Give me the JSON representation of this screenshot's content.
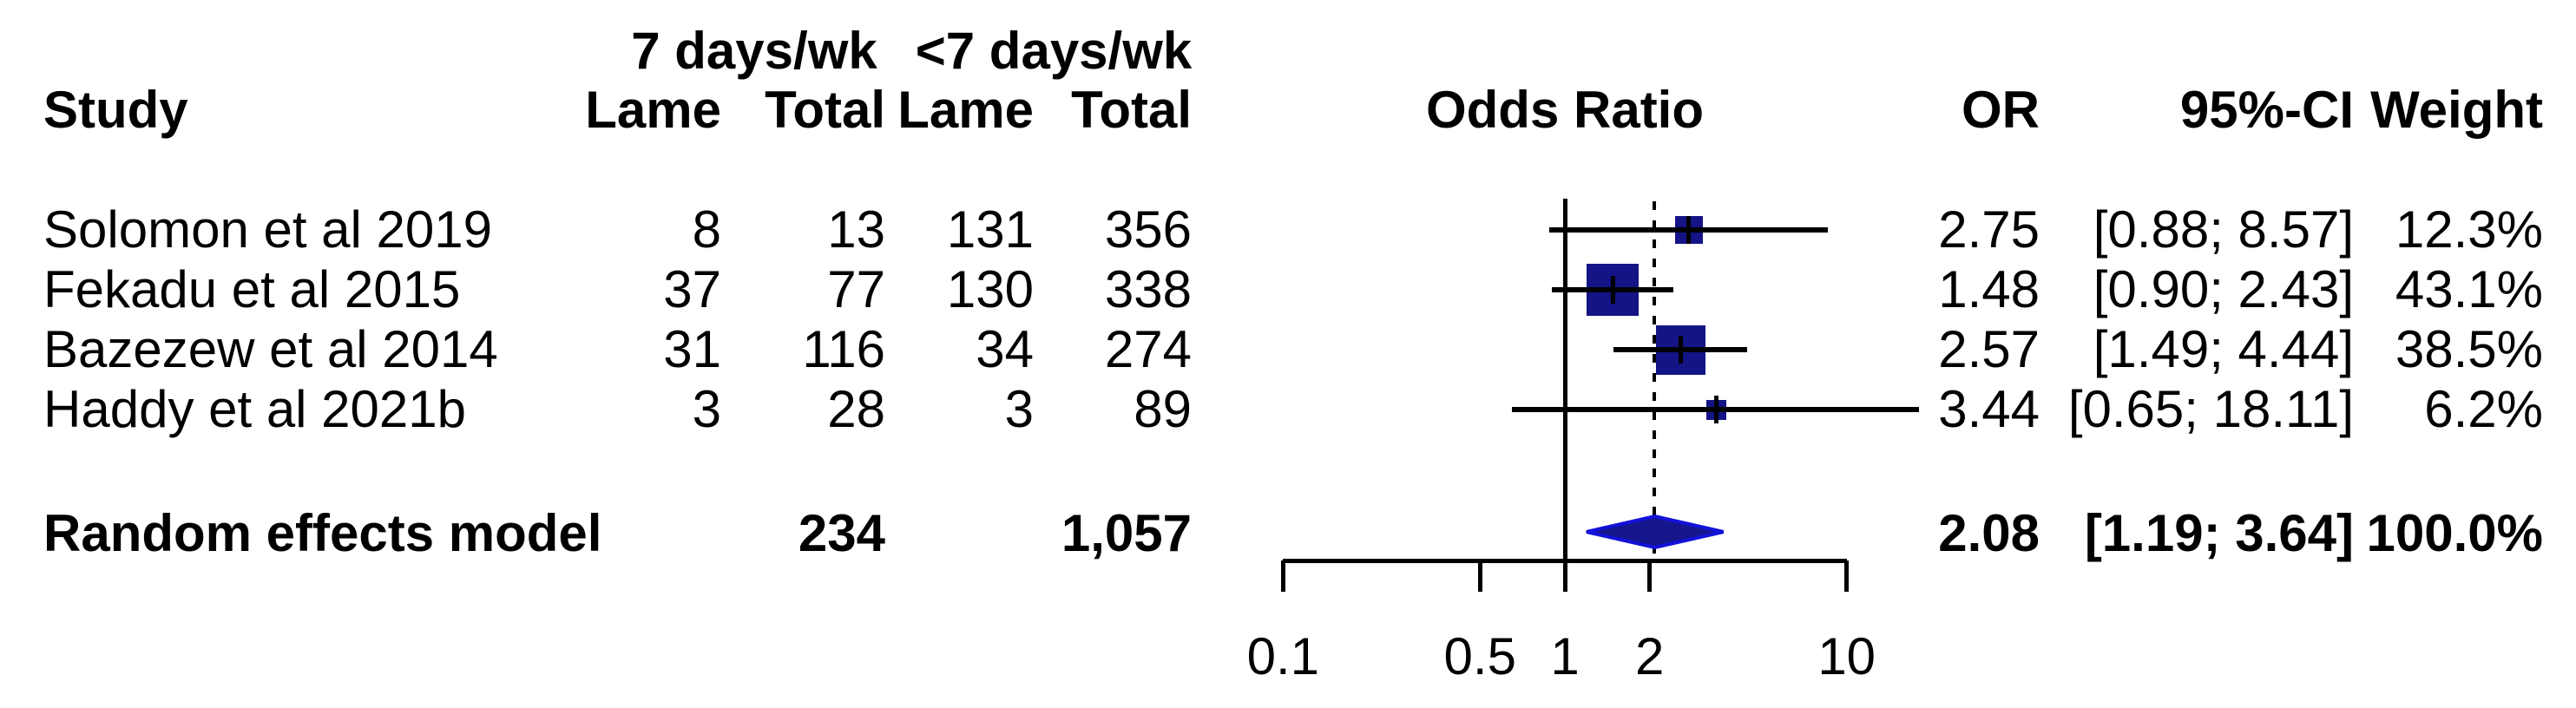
{
  "headers": {
    "study": "Study",
    "group1": "7 days/wk",
    "group2": "<7 days/wk",
    "lame": "Lame",
    "total": "Total",
    "odds_ratio": "Odds Ratio",
    "or": "OR",
    "ci": "95%-CI",
    "weight": "Weight"
  },
  "colors": {
    "square_fill": "#141487",
    "diamond_fill": "#16168c",
    "diamond_stroke": "#1212d9",
    "line": "#000000",
    "text": "#000000"
  },
  "chart_data": {
    "type": "forest",
    "x_scale": "log10",
    "axis_ticks": [
      "0.1",
      "0.5",
      "1",
      "2",
      "10"
    ],
    "ref_line": 1,
    "dotted_line_at": 2.08,
    "studies": [
      {
        "name": "Solomon et al 2019",
        "lame_7d": 8,
        "total_7d": 13,
        "lame_lt7d": 131,
        "total_lt7d": 356,
        "or": 2.75,
        "ci_low": 0.88,
        "ci_high": 8.57,
        "ci_text": "[0.88; 8.57]",
        "weight_text": "12.3%",
        "weight_pct": 12.3
      },
      {
        "name": "Fekadu et al 2015",
        "lame_7d": 37,
        "total_7d": 77,
        "lame_lt7d": 130,
        "total_lt7d": 338,
        "or": 1.48,
        "ci_low": 0.9,
        "ci_high": 2.43,
        "ci_text": "[0.90; 2.43]",
        "weight_text": "43.1%",
        "weight_pct": 43.1
      },
      {
        "name": "Bazezew et al 2014",
        "lame_7d": 31,
        "total_7d": 116,
        "lame_lt7d": 34,
        "total_lt7d": 274,
        "or": 2.57,
        "ci_low": 1.49,
        "ci_high": 4.44,
        "ci_text": "[1.49; 4.44]",
        "weight_text": "38.5%",
        "weight_pct": 38.5
      },
      {
        "name": "Haddy et al 2021b",
        "lame_7d": 3,
        "total_7d": 28,
        "lame_lt7d": 3,
        "total_lt7d": 89,
        "or": 3.44,
        "ci_low": 0.65,
        "ci_high": 18.11,
        "ci_text": "[0.65; 18.11]",
        "weight_text": "6.2%",
        "weight_pct": 6.2
      }
    ],
    "summary": {
      "label": "Random effects model",
      "total_7d": "234",
      "total_lt7d": "1,057",
      "or": 2.08,
      "ci_low": 1.19,
      "ci_high": 3.64,
      "ci_text": "[1.19; 3.64]",
      "weight_text": "100.0%"
    }
  }
}
